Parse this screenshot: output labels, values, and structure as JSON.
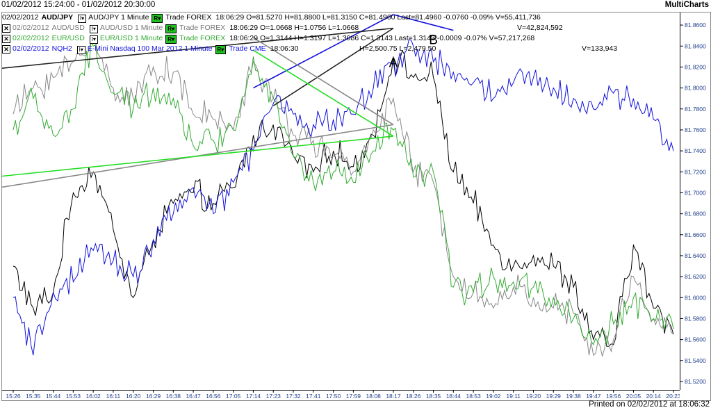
{
  "window": {
    "date_range": "01/02/2012 15:24:00 - 01/02/2012 20:30:00",
    "app_name": "MultiCharts",
    "printed": "Printed on 02/02/2012 at 18:06:32"
  },
  "legend": [
    {
      "color": "#000000",
      "has_close": false,
      "date": "02/02/2012",
      "symbol": "AUD/JPY",
      "desc": "AUD/JPY 1 Minute",
      "r_label": "R▾",
      "source": "Trade  FOREX",
      "stats": "18:06:29  O=81.5270  H=81.8800  L=81.3150  C=81.4960  Last=81.4960  -0.0760  -0.09%  V=55,411,736",
      "volume": ""
    },
    {
      "color": "#8a8a8a",
      "has_close": true,
      "date": "02/02/2012",
      "symbol": "AUD/USD",
      "desc": "AUD/USD 1 Minute",
      "r_label": "R▾",
      "source": "Trade  FOREX",
      "stats": "18:06:29  O=1.0668  H=1.0756  L=1.0668",
      "volume": "V=42,824,592"
    },
    {
      "color": "#33aa33",
      "has_close": true,
      "date": "02/02/2012",
      "symbol": "EUR/USD",
      "desc": "EUR/USD 1 Minute",
      "r_label": "R▾",
      "source": "Trade  FOREX",
      "stats": "18:06:29  O=1.3144  H=1.3197  L=1.3086  C=1.3143  Last=1.3143  -0.0009  -0.07%  V=57,217,268",
      "volume": ""
    },
    {
      "color": "#1010dd",
      "has_close": true,
      "date": "02/02/2012",
      "symbol": "NQH2",
      "desc": "E-Mini Nasdaq 100 Mar 2012  1 Minute",
      "r_label": "R▾",
      "source": "Trade  CME",
      "stats": "18:06:30",
      "hl": "H=2,500.75  L=2,479.50",
      "volume": "V=133,943"
    }
  ],
  "chart_data": {
    "type": "line",
    "title": "",
    "xlabel": "",
    "ylabel": "",
    "x": [
      "15:26",
      "15:35",
      "15:44",
      "15:53",
      "16:02",
      "16:11",
      "16:20",
      "16:29",
      "16:38",
      "16:47",
      "16:56",
      "17:05",
      "17:14",
      "17:23",
      "17:32",
      "17:41",
      "17:50",
      "17:59",
      "18:08",
      "18:17",
      "18:26",
      "18:35",
      "18:44",
      "18:53",
      "19:02",
      "19:11",
      "19:20",
      "19:29",
      "19:38",
      "19:47",
      "19:56",
      "20:05",
      "20:14",
      "20:23"
    ],
    "yticks": [
      "81.8600",
      "81.8400",
      "81.8200",
      "81.8000",
      "81.7800",
      "81.7600",
      "81.7400",
      "81.7200",
      "81.7000",
      "81.6800",
      "81.6600",
      "81.6400",
      "81.6200",
      "81.6000",
      "81.5800",
      "81.5600",
      "81.5400",
      "81.5200"
    ],
    "ylim": [
      81.512,
      81.872
    ],
    "grid": false,
    "series": [
      {
        "name": "AUD/JPY",
        "color": "#000000",
        "values": [
          81.63,
          81.59,
          81.605,
          81.7,
          81.72,
          81.665,
          81.6,
          81.655,
          81.69,
          81.7,
          81.69,
          81.705,
          81.755,
          81.765,
          81.735,
          81.72,
          81.74,
          81.725,
          81.755,
          81.83,
          81.81,
          81.81,
          81.72,
          81.69,
          81.65,
          81.63,
          81.64,
          81.63,
          81.61,
          81.56,
          81.555,
          81.65,
          81.59,
          81.565
        ]
      },
      {
        "name": "AUD/USD",
        "color": "#888888",
        "values": [
          81.775,
          81.8,
          81.81,
          81.825,
          81.845,
          81.8,
          81.79,
          81.82,
          81.815,
          81.775,
          81.77,
          81.76,
          81.825,
          81.79,
          81.755,
          81.75,
          81.735,
          81.72,
          81.76,
          81.79,
          81.72,
          81.71,
          81.62,
          81.605,
          81.59,
          81.61,
          81.6,
          81.59,
          81.585,
          81.545,
          81.56,
          81.62,
          81.58,
          81.565
        ]
      },
      {
        "name": "EUR/USD",
        "color": "#33aa33",
        "values": [
          81.76,
          81.79,
          81.755,
          81.78,
          81.84,
          81.795,
          81.78,
          81.8,
          81.79,
          81.745,
          81.75,
          81.76,
          81.83,
          81.79,
          81.735,
          81.71,
          81.72,
          81.71,
          81.74,
          81.76,
          81.715,
          81.72,
          81.61,
          81.605,
          81.62,
          81.615,
          81.61,
          81.6,
          81.58,
          81.555,
          81.575,
          81.6,
          81.58,
          81.57
        ]
      },
      {
        "name": "NQH2",
        "color": "#1010dd",
        "values": [
          81.6,
          81.545,
          81.605,
          81.615,
          81.645,
          81.635,
          81.62,
          81.655,
          81.68,
          81.705,
          81.68,
          81.71,
          81.74,
          81.785,
          81.775,
          81.765,
          81.77,
          81.775,
          81.8,
          81.825,
          81.84,
          81.825,
          81.815,
          81.805,
          81.79,
          81.805,
          81.81,
          81.8,
          81.79,
          81.78,
          81.795,
          81.79,
          81.77,
          81.74
        ]
      }
    ],
    "annotations": [
      {
        "label": "A",
        "x": "18:17",
        "y": 81.82
      },
      {
        "label": "B",
        "x": "18:35",
        "y": 81.842
      }
    ],
    "drawn_lines": [
      {
        "color": "#1010dd",
        "from": {
          "x": "17:14",
          "y": 81.8
        },
        "to": {
          "x": "18:17",
          "y": 81.87
        }
      },
      {
        "color": "#1010dd",
        "from": {
          "x": "18:17",
          "y": 81.87
        },
        "to": {
          "x": "18:44",
          "y": 81.855
        }
      },
      {
        "color": "#222222",
        "from": {
          "x": "17:23",
          "y": 81.783
        },
        "to": {
          "x": "18:17",
          "y": 81.857
        }
      },
      {
        "color": "#222222",
        "from": {
          "x": "18:17",
          "y": 81.857
        },
        "to": {
          "x": "18:41",
          "y": 81.818
        }
      },
      {
        "color": "#888888",
        "from": {
          "x": "17:14",
          "y": 81.848
        },
        "to": {
          "x": "18:17",
          "y": 81.765
        }
      },
      {
        "color": "#888888",
        "from": {
          "x": "18:17",
          "y": 81.765
        },
        "to": {
          "x": "18:38",
          "y": 81.704
        }
      },
      {
        "color": "#22dd22",
        "from": {
          "x": "17:14",
          "y": 81.836
        },
        "to": {
          "x": "18:17",
          "y": 81.754
        }
      },
      {
        "color": "#22dd22",
        "from": {
          "x": "18:17",
          "y": 81.754
        },
        "to": {
          "x": "18:38",
          "y": 81.715
        }
      }
    ]
  }
}
